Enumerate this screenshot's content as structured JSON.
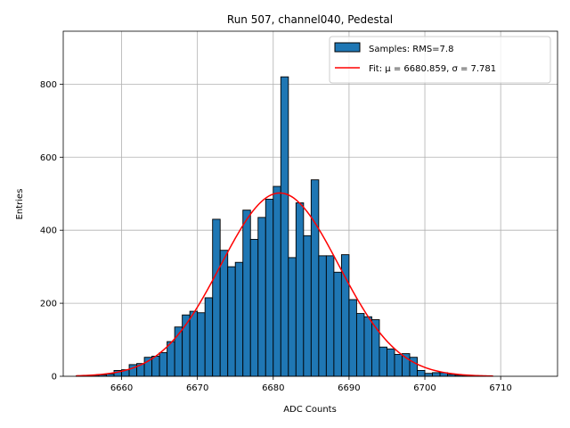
{
  "chart_data": {
    "type": "bar",
    "title": "Run 507, channel040, Pedestal",
    "xlabel": "ADC Counts",
    "ylabel": "Entries",
    "xlim": [
      6652.3,
      6717.5
    ],
    "ylim": [
      0,
      945
    ],
    "xticks": [
      6660,
      6670,
      6680,
      6690,
      6700,
      6710
    ],
    "yticks": [
      0,
      200,
      400,
      600,
      800
    ],
    "grid": true,
    "legend_position": "top-right",
    "bin_width": 1,
    "series": [
      {
        "name": "Samples: RMS=7.8",
        "kind": "histogram",
        "color": "#1f77b4",
        "edgecolor": "#000000",
        "bins": [
          6654,
          6655,
          6656,
          6657,
          6658,
          6659,
          6660,
          6661,
          6662,
          6663,
          6664,
          6665,
          6666,
          6667,
          6668,
          6669,
          6670,
          6671,
          6672,
          6673,
          6674,
          6675,
          6676,
          6677,
          6678,
          6679,
          6680,
          6681,
          6682,
          6683,
          6684,
          6685,
          6686,
          6687,
          6688,
          6689,
          6690,
          6691,
          6692,
          6693,
          6694,
          6695,
          6696,
          6697,
          6698,
          6699,
          6700,
          6701,
          6702,
          6703,
          6704,
          6705,
          6706,
          6707,
          6708,
          6709
        ],
        "values": [
          1,
          1,
          3,
          4,
          6,
          16,
          18,
          32,
          35,
          52,
          55,
          65,
          95,
          135,
          168,
          178,
          174,
          215,
          430,
          345,
          300,
          312,
          455,
          375,
          435,
          485,
          520,
          820,
          325,
          475,
          385,
          538,
          330,
          330,
          285,
          333,
          210,
          172,
          163,
          155,
          80,
          75,
          60,
          62,
          52,
          16,
          8,
          10,
          10,
          5,
          3,
          2,
          1,
          1,
          0,
          0
        ]
      },
      {
        "name": "Fit: μ = 6680.859, σ = 7.781",
        "kind": "gaussian-fit",
        "color": "#ff0000",
        "mu": 6680.859,
        "sigma": 7.781,
        "amplitude": 502,
        "x_range": [
          6654,
          6709
        ]
      }
    ],
    "legend": [
      {
        "label": "Samples: RMS=7.8",
        "type": "patch",
        "color": "#1f77b4"
      },
      {
        "label": "Fit: μ = 6680.859, σ = 7.781",
        "type": "line",
        "color": "#ff0000"
      }
    ]
  }
}
